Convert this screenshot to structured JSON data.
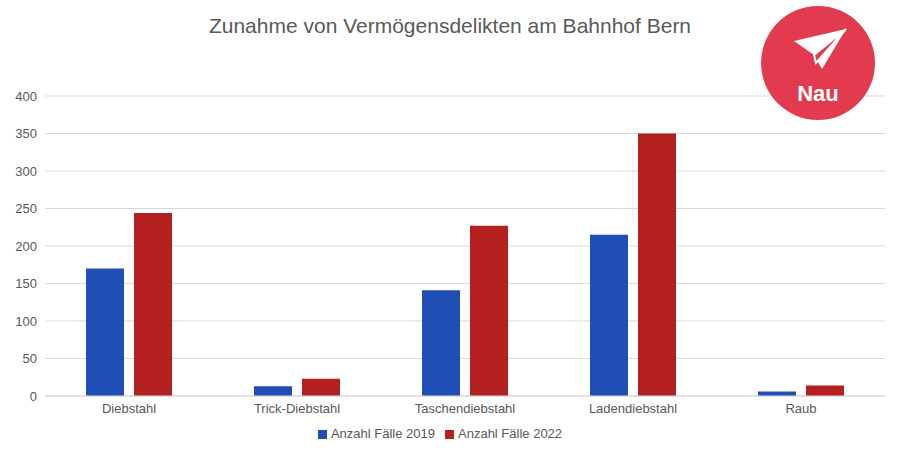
{
  "chart_data": {
    "type": "bar",
    "title": "Zunahme von Vermögensdelikten am Bahnhof Bern",
    "logo": "Nau",
    "categories": [
      "Diebstahl",
      "Trick-Diebstahl",
      "Taschendiebstahl",
      "Ladendiebstahl",
      "Raub"
    ],
    "series": [
      {
        "name": "Anzahl Fälle 2019",
        "color": "#1f4fb5",
        "values": [
          170,
          13,
          141,
          215,
          6
        ]
      },
      {
        "name": "Anzahl Fälle 2022",
        "color": "#b41f1f",
        "values": [
          244,
          23,
          227,
          350,
          14
        ]
      }
    ],
    "ylim": [
      0,
      400
    ],
    "yticks": [
      0,
      50,
      100,
      150,
      200,
      250,
      300,
      350,
      400
    ],
    "grid": true,
    "legend": "bottom"
  }
}
